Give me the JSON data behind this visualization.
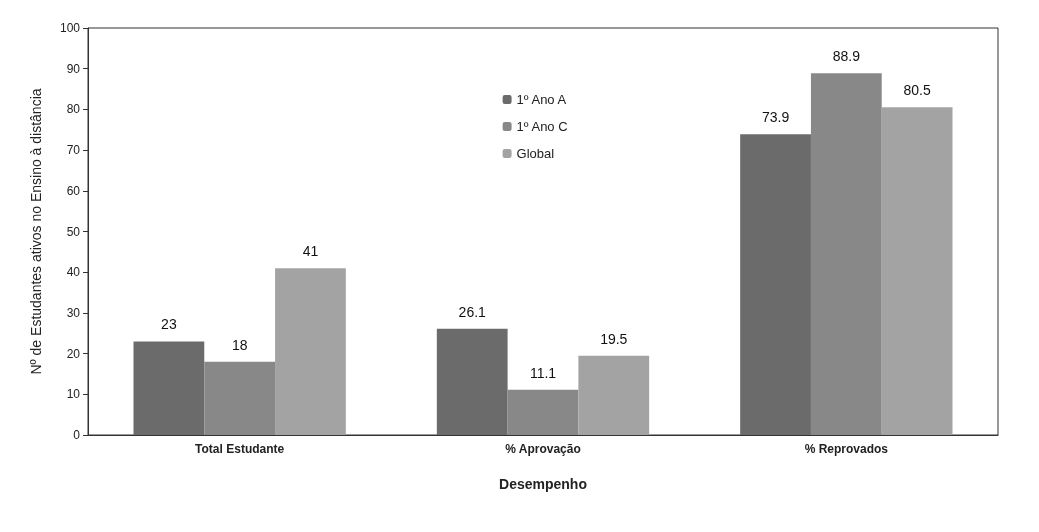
{
  "chart_data": {
    "type": "bar",
    "xlabel": "Desempenho",
    "ylabel": "Nº de Estudantes ativos no Ensino à distância",
    "categories": [
      "Total Estudante",
      "% Aprovação",
      "% Reprovados"
    ],
    "series": [
      {
        "name": "1º Ano A",
        "color": "#6b6b6b",
        "values": [
          23,
          26.1,
          73.9
        ]
      },
      {
        "name": "1º Ano C",
        "color": "#888888",
        "values": [
          18,
          11.1,
          88.9
        ]
      },
      {
        "name": "Global",
        "color": "#a3a3a3",
        "values": [
          41,
          19.5,
          80.5
        ]
      }
    ],
    "ylim": [
      0,
      100
    ],
    "yticks": [
      0,
      10,
      20,
      30,
      40,
      50,
      60,
      70,
      80,
      90,
      100
    ],
    "data_labels": true,
    "grid": false,
    "legend": "top"
  }
}
